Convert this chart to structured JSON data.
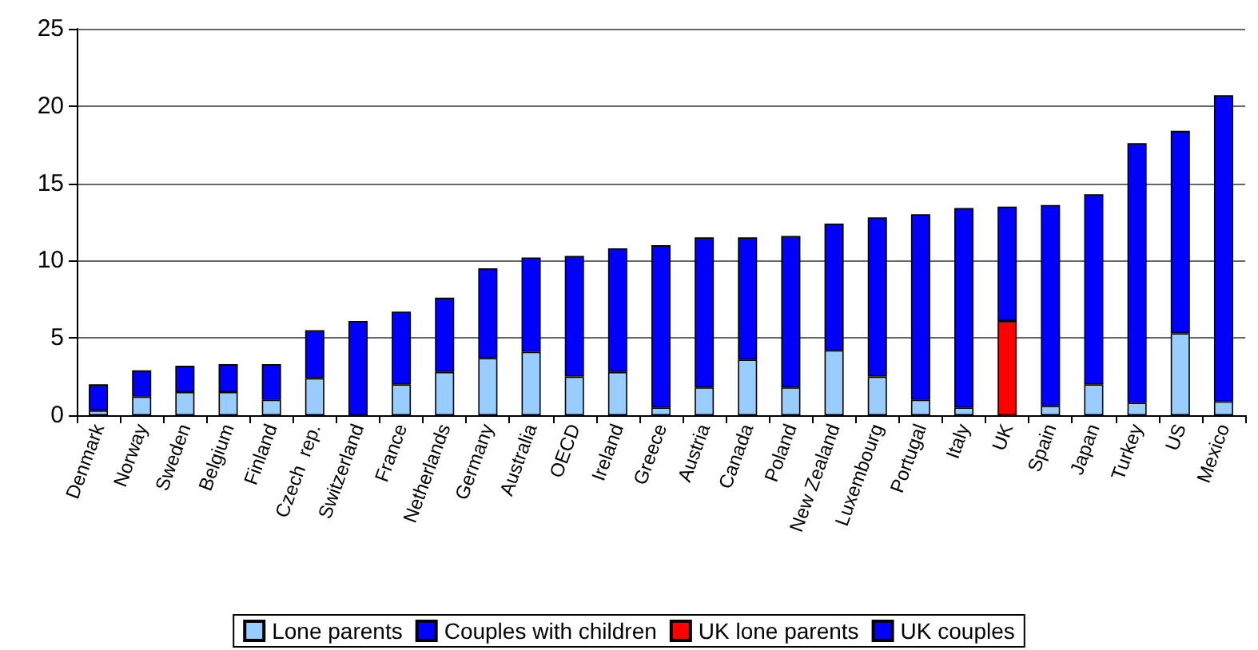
{
  "chart_data": {
    "type": "bar",
    "stacked": true,
    "categories": [
      "Denmark",
      "Norway",
      "Sweden",
      "Belgium",
      "Finland",
      "Czech  rep.",
      "Switzerland",
      "France",
      "Netherlands",
      "Germany",
      "Australia",
      "OECD",
      "Ireland",
      "Greece",
      "Austria",
      "Canada",
      "Poland",
      "New Zealand",
      "Luxembourg",
      "Portugal",
      "Italy",
      "UK",
      "Spain",
      "Japan",
      "Turkey",
      "US",
      "Mexico"
    ],
    "series": [
      {
        "name": "Lone parents",
        "color": "#99ccff",
        "values": [
          0.3,
          1.2,
          1.5,
          1.5,
          1.0,
          2.4,
          null,
          2.0,
          2.8,
          3.7,
          4.1,
          2.5,
          2.8,
          0.5,
          1.8,
          3.6,
          1.8,
          4.2,
          2.5,
          1.0,
          0.5,
          null,
          0.6,
          2.0,
          0.8,
          5.3,
          0.9
        ]
      },
      {
        "name": "Couples with children",
        "color": "#0000ff",
        "values": [
          1.7,
          1.7,
          1.7,
          1.8,
          2.3,
          3.1,
          6.1,
          4.7,
          4.8,
          5.8,
          6.1,
          7.8,
          8.0,
          10.5,
          9.7,
          7.9,
          9.8,
          8.2,
          10.3,
          12.0,
          12.9,
          null,
          13.0,
          12.3,
          16.8,
          13.1,
          19.8
        ]
      },
      {
        "name": "UK lone parents",
        "color": "#ff0000",
        "values": [
          null,
          null,
          null,
          null,
          null,
          null,
          null,
          null,
          null,
          null,
          null,
          null,
          null,
          null,
          null,
          null,
          null,
          null,
          null,
          null,
          null,
          6.1,
          null,
          null,
          null,
          null,
          null
        ]
      },
      {
        "name": "UK couples",
        "color": "#0000ff",
        "values": [
          null,
          null,
          null,
          null,
          null,
          null,
          null,
          null,
          null,
          null,
          null,
          null,
          null,
          null,
          null,
          null,
          null,
          null,
          null,
          null,
          null,
          7.4,
          null,
          null,
          null,
          null,
          null
        ]
      }
    ],
    "ylim": [
      0,
      25
    ],
    "yticks": [
      0,
      5,
      10,
      15,
      20,
      25
    ],
    "grid": "y",
    "legend": "bottom"
  }
}
